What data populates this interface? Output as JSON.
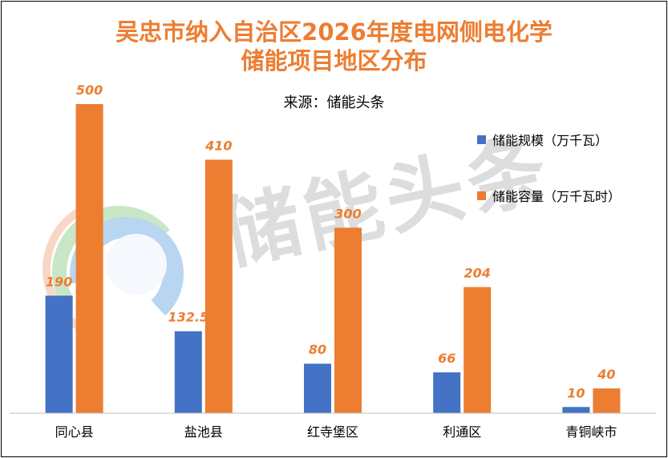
{
  "chart_data": {
    "type": "bar",
    "title": "吴忠市纳入自治区2026年度电网侧电化学储能项目地区分布",
    "title_line1": "吴忠市纳入自治区2026年度电网侧电化学",
    "title_line2": "储能项目地区分布",
    "subtitle": "来源：储能头条",
    "categories": [
      "同心县",
      "盐池县",
      "红寺堡区",
      "利通区",
      "青铜峡市"
    ],
    "series": [
      {
        "name": "储能规模（万千瓦）",
        "values": [
          190,
          132.5,
          80,
          66,
          10
        ],
        "labels": [
          "190",
          "132.5",
          "80",
          "66",
          "10"
        ],
        "color": "#4472C4"
      },
      {
        "name": "储能容量（万千瓦时）",
        "values": [
          500,
          410,
          300,
          204,
          40
        ],
        "labels": [
          "500",
          "410",
          "300",
          "204",
          "40"
        ],
        "color": "#ED7D31"
      }
    ],
    "ylim": [
      0,
      500
    ],
    "grid": false,
    "legend_position": "right"
  },
  "watermark": {
    "text": "储能头条"
  }
}
